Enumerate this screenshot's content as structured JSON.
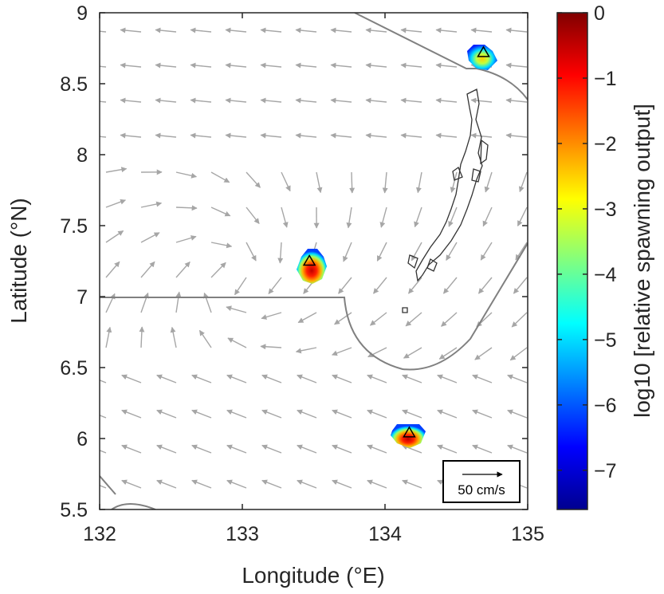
{
  "map": {
    "xlabel": "Longitude (°E)",
    "ylabel": "Latitude (°N)",
    "xlim": [
      132,
      135
    ],
    "ylim": [
      5.5,
      9
    ],
    "xticks": [
      {
        "value": 132,
        "label": "132"
      },
      {
        "value": 133,
        "label": "133"
      },
      {
        "value": 134,
        "label": "134"
      },
      {
        "value": 135,
        "label": "135"
      }
    ],
    "yticks": [
      {
        "value": 5.5,
        "label": "5.5"
      },
      {
        "value": 6,
        "label": "6"
      },
      {
        "value": 6.5,
        "label": "6.5"
      },
      {
        "value": 7,
        "label": "7"
      },
      {
        "value": 7.5,
        "label": "7.5"
      },
      {
        "value": 8,
        "label": "8"
      },
      {
        "value": 8.5,
        "label": "8.5"
      },
      {
        "value": 9,
        "label": "9"
      }
    ],
    "sites": [
      {
        "lon": 133.47,
        "lat": 7.25
      },
      {
        "lon": 134.17,
        "lat": 6.04
      },
      {
        "lon": 134.69,
        "lat": 8.72
      }
    ],
    "scale_label": "50 cm/s",
    "colors": {
      "arrows": "#a6a6a6",
      "boundary": "#808080",
      "coast": "#333333",
      "site_marker": "#000000"
    }
  },
  "colorbar": {
    "label": "log10 [relative spawning output]",
    "range": [
      -7.6,
      0
    ],
    "colormap": "jet",
    "ticks": [
      {
        "value": 0,
        "label": "0"
      },
      {
        "value": -1,
        "label": "−1"
      },
      {
        "value": -2,
        "label": "−2"
      },
      {
        "value": -3,
        "label": "−3"
      },
      {
        "value": -4,
        "label": "−4"
      },
      {
        "value": -5,
        "label": "−5"
      },
      {
        "value": -6,
        "label": "−6"
      },
      {
        "value": -7,
        "label": "−7"
      }
    ]
  }
}
